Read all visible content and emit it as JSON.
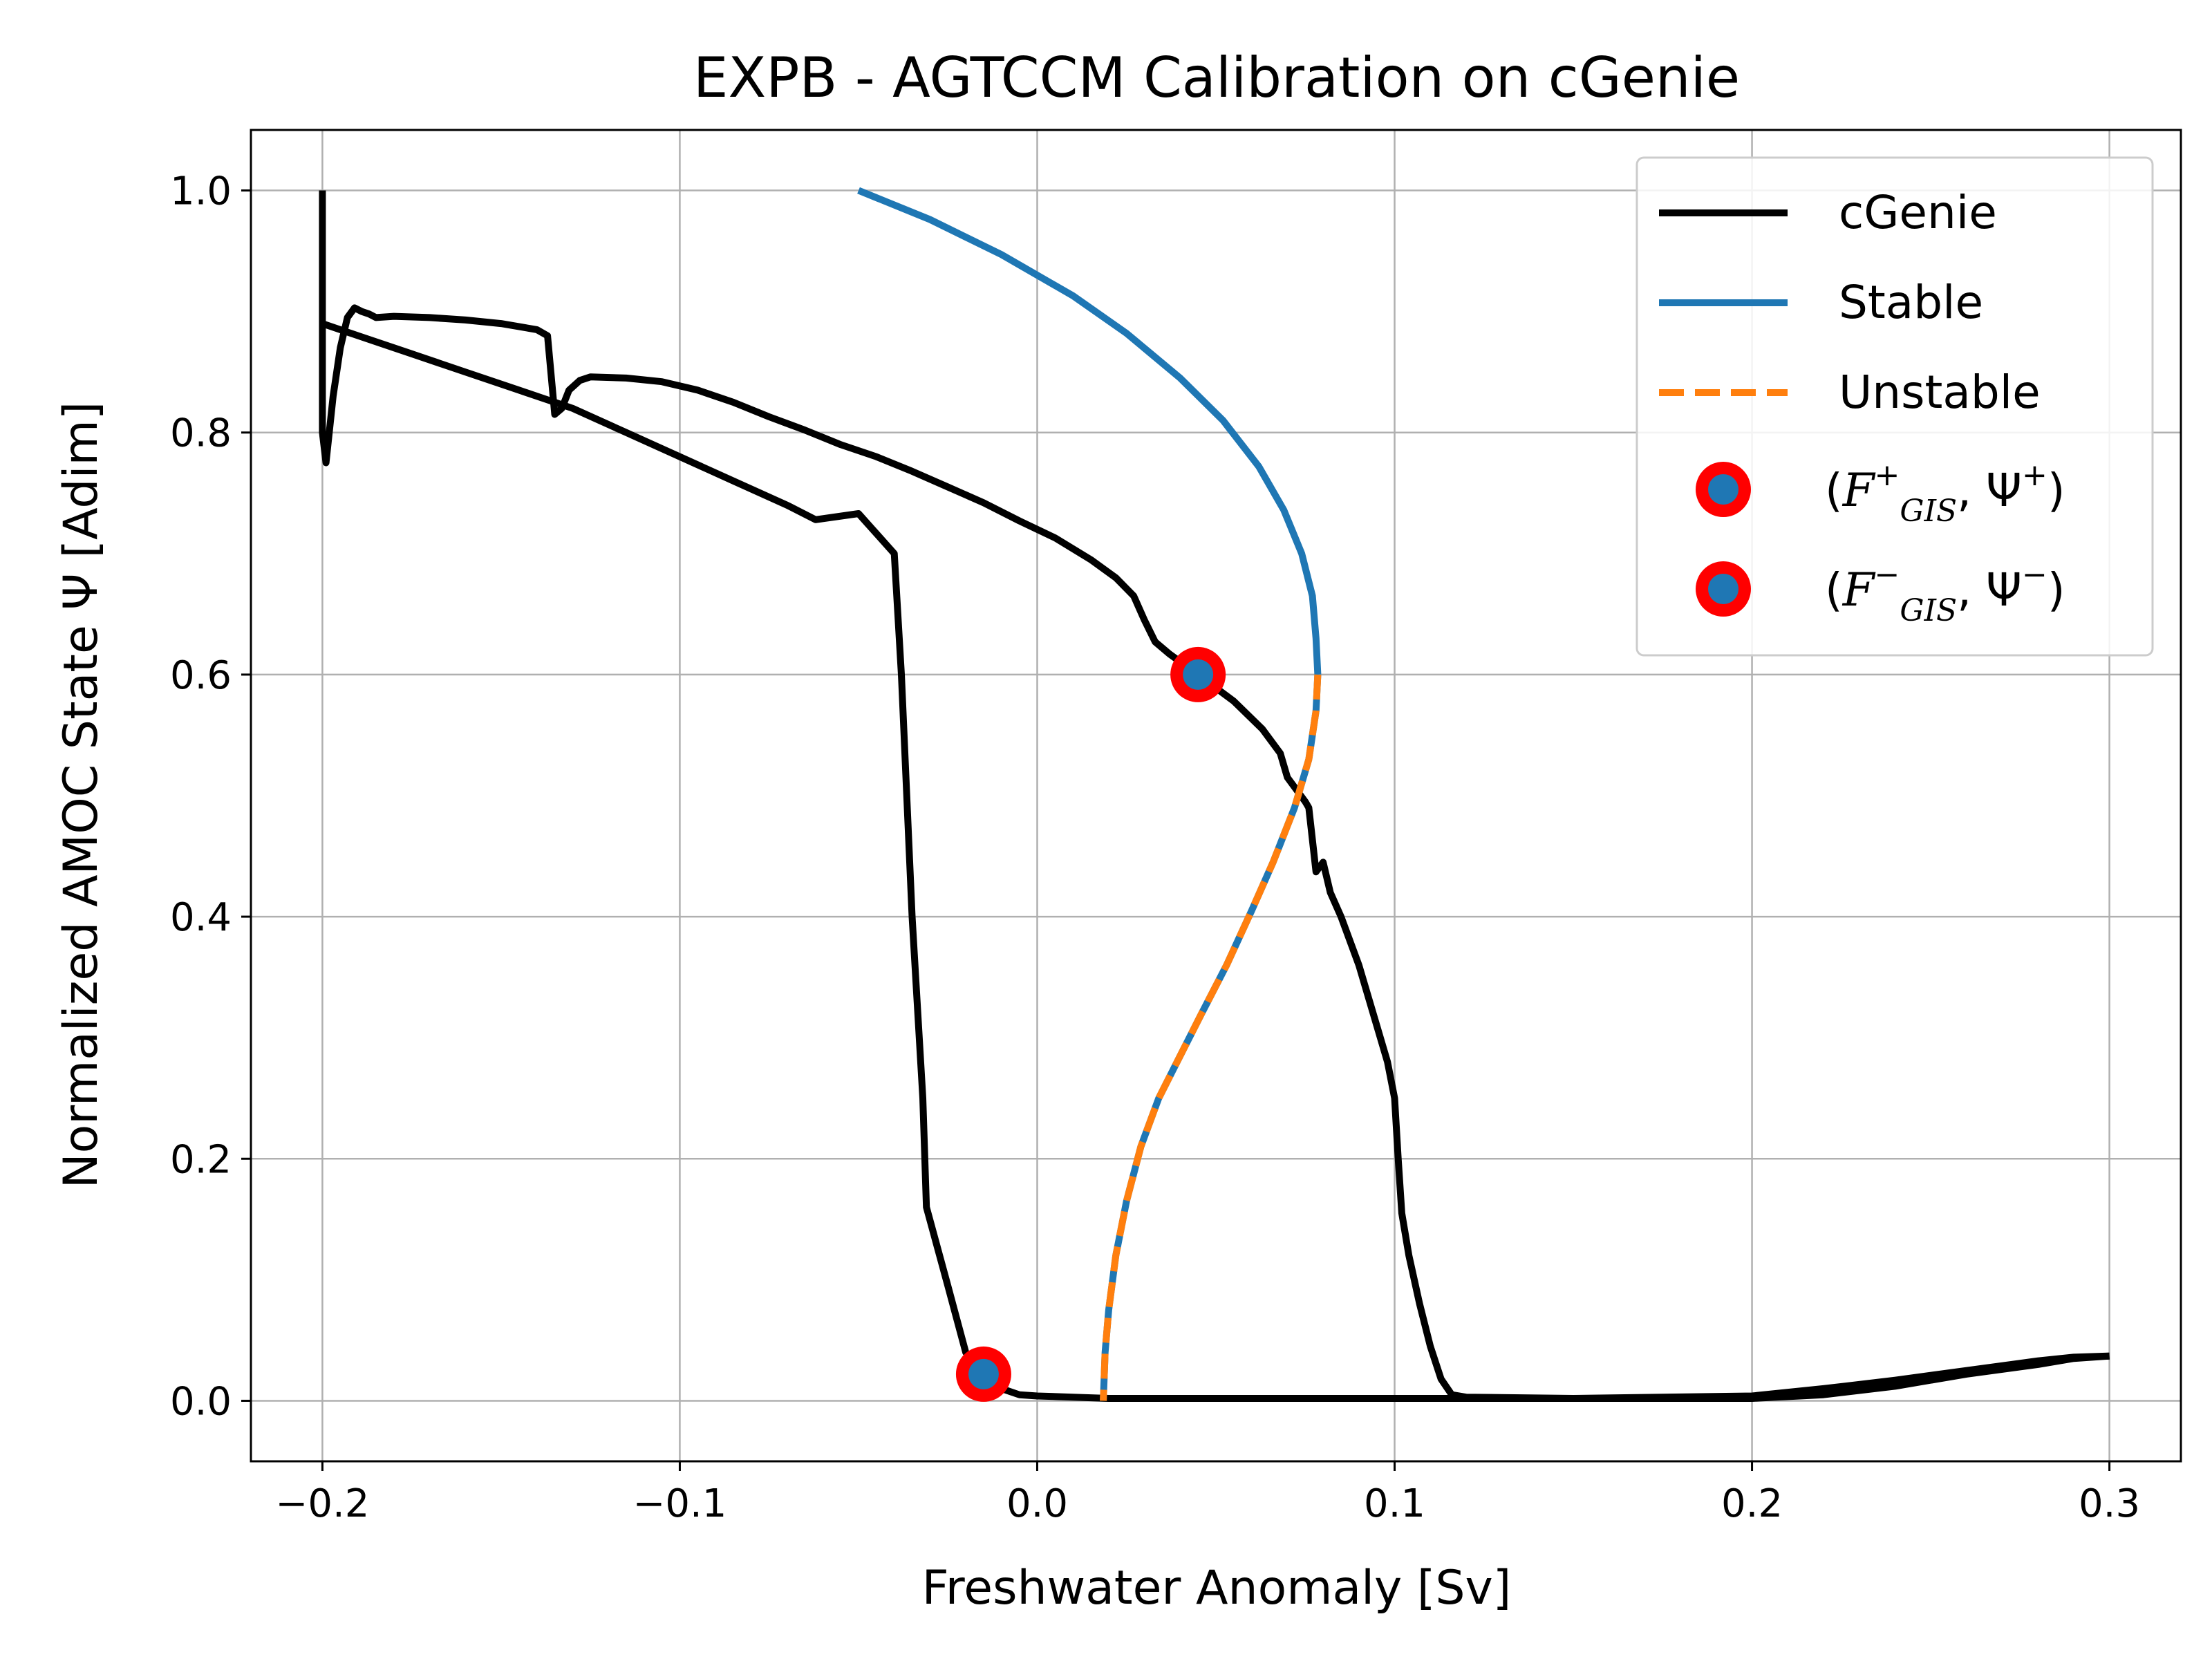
{
  "chart_data": {
    "type": "line",
    "title": "EXPB - AGTCCM Calibration on cGenie",
    "xlabel": "Freshwater Anomaly [Sv]",
    "ylabel": "Normalized AMOC State Ψ [Adim]",
    "xlim": [
      -0.22,
      0.32
    ],
    "ylim": [
      -0.05,
      1.05
    ],
    "grid": true,
    "legend_position": "top-right",
    "x_ticks": [
      {
        "value": -0.2,
        "label": "−0.2"
      },
      {
        "value": -0.1,
        "label": "−0.1"
      },
      {
        "value": 0.0,
        "label": "0.0"
      },
      {
        "value": 0.1,
        "label": "0.1"
      },
      {
        "value": 0.2,
        "label": "0.2"
      },
      {
        "value": 0.3,
        "label": "0.3"
      }
    ],
    "y_ticks": [
      {
        "value": 0.0,
        "label": "0.0"
      },
      {
        "value": 0.2,
        "label": "0.2"
      },
      {
        "value": 0.4,
        "label": "0.4"
      },
      {
        "value": 0.6,
        "label": "0.6"
      },
      {
        "value": 0.8,
        "label": "0.8"
      },
      {
        "value": 1.0,
        "label": "1.0"
      }
    ],
    "series": [
      {
        "name": "cGenie",
        "style": "solid",
        "color": "#000000",
        "points": [
          [
            -0.2,
            1.0
          ],
          [
            -0.2,
            0.8
          ],
          [
            -0.199,
            0.775
          ],
          [
            -0.197,
            0.83
          ],
          [
            -0.195,
            0.87
          ],
          [
            -0.193,
            0.895
          ],
          [
            -0.191,
            0.903
          ],
          [
            -0.189,
            0.9
          ],
          [
            -0.187,
            0.898
          ],
          [
            -0.185,
            0.895
          ],
          [
            -0.18,
            0.896
          ],
          [
            -0.17,
            0.895
          ],
          [
            -0.16,
            0.893
          ],
          [
            -0.15,
            0.89
          ],
          [
            -0.14,
            0.885
          ],
          [
            -0.137,
            0.88
          ],
          [
            -0.135,
            0.815
          ],
          [
            -0.133,
            0.82
          ],
          [
            -0.131,
            0.835
          ],
          [
            -0.128,
            0.843
          ],
          [
            -0.125,
            0.846
          ],
          [
            -0.115,
            0.845
          ],
          [
            -0.105,
            0.842
          ],
          [
            -0.095,
            0.835
          ],
          [
            -0.085,
            0.825
          ],
          [
            -0.075,
            0.813
          ],
          [
            -0.065,
            0.802
          ],
          [
            -0.055,
            0.79
          ],
          [
            -0.045,
            0.78
          ],
          [
            -0.035,
            0.768
          ],
          [
            -0.025,
            0.755
          ],
          [
            -0.015,
            0.742
          ],
          [
            -0.005,
            0.727
          ],
          [
            0.005,
            0.713
          ],
          [
            0.015,
            0.695
          ],
          [
            0.022,
            0.68
          ],
          [
            0.027,
            0.665
          ],
          [
            0.03,
            0.645
          ],
          [
            0.033,
            0.627
          ],
          [
            0.037,
            0.617
          ],
          [
            0.045,
            0.6
          ],
          [
            0.055,
            0.578
          ],
          [
            0.063,
            0.555
          ],
          [
            0.068,
            0.535
          ],
          [
            0.07,
            0.515
          ],
          [
            0.075,
            0.495
          ],
          [
            0.076,
            0.49
          ],
          [
            0.078,
            0.437
          ],
          [
            0.08,
            0.445
          ],
          [
            0.082,
            0.42
          ],
          [
            0.085,
            0.4
          ],
          [
            0.09,
            0.36
          ],
          [
            0.095,
            0.31
          ],
          [
            0.098,
            0.28
          ],
          [
            0.1,
            0.25
          ],
          [
            0.101,
            0.2
          ],
          [
            0.102,
            0.155
          ],
          [
            0.104,
            0.12
          ],
          [
            0.107,
            0.08
          ],
          [
            0.11,
            0.045
          ],
          [
            0.113,
            0.018
          ],
          [
            0.116,
            0.005
          ],
          [
            0.12,
            0.003
          ],
          [
            0.15,
            0.002
          ],
          [
            0.2,
            0.002
          ],
          [
            0.22,
            0.005
          ],
          [
            0.24,
            0.012
          ],
          [
            0.26,
            0.022
          ],
          [
            0.28,
            0.03
          ],
          [
            0.29,
            0.035
          ],
          [
            0.3,
            0.037
          ]
        ],
        "branch2": [
          [
            -0.2,
            0.89
          ],
          [
            -0.19,
            0.88
          ],
          [
            -0.175,
            0.865
          ],
          [
            -0.16,
            0.85
          ],
          [
            -0.145,
            0.835
          ],
          [
            -0.13,
            0.82
          ],
          [
            -0.115,
            0.8
          ],
          [
            -0.1,
            0.78
          ],
          [
            -0.085,
            0.76
          ],
          [
            -0.07,
            0.74
          ],
          [
            -0.062,
            0.728
          ],
          [
            -0.05,
            0.733
          ],
          [
            -0.04,
            0.7
          ],
          [
            -0.038,
            0.6
          ],
          [
            -0.035,
            0.4
          ],
          [
            -0.032,
            0.25
          ],
          [
            -0.031,
            0.16
          ],
          [
            -0.025,
            0.095
          ],
          [
            -0.02,
            0.04
          ],
          [
            -0.015,
            0.02
          ],
          [
            -0.01,
            0.01
          ],
          [
            -0.005,
            0.005
          ],
          [
            0.0,
            0.004
          ],
          [
            0.01,
            0.003
          ],
          [
            0.02,
            0.002
          ],
          [
            0.05,
            0.002
          ],
          [
            0.1,
            0.002
          ],
          [
            0.15,
            0.002
          ],
          [
            0.2,
            0.004
          ],
          [
            0.22,
            0.01
          ],
          [
            0.24,
            0.017
          ],
          [
            0.26,
            0.025
          ],
          [
            0.28,
            0.033
          ],
          [
            0.29,
            0.036
          ],
          [
            0.3,
            0.037
          ]
        ]
      },
      {
        "name": "Stable",
        "style": "solid",
        "color": "#1f77b4",
        "points": [
          [
            -0.05,
            1.0
          ],
          [
            -0.03,
            0.976
          ],
          [
            -0.01,
            0.947
          ],
          [
            0.01,
            0.913
          ],
          [
            0.025,
            0.882
          ],
          [
            0.04,
            0.845
          ],
          [
            0.052,
            0.81
          ],
          [
            0.062,
            0.772
          ],
          [
            0.069,
            0.736
          ],
          [
            0.074,
            0.7
          ],
          [
            0.077,
            0.665
          ],
          [
            0.078,
            0.63
          ],
          [
            0.0785,
            0.6
          ]
        ]
      },
      {
        "name": "Unstable",
        "style": "dashed",
        "color": "#ff7f0e",
        "overlay_color": "#1f77b4",
        "points": [
          [
            0.0785,
            0.6
          ],
          [
            0.078,
            0.57
          ],
          [
            0.076,
            0.53
          ],
          [
            0.072,
            0.49
          ],
          [
            0.066,
            0.445
          ],
          [
            0.06,
            0.405
          ],
          [
            0.053,
            0.36
          ],
          [
            0.046,
            0.32
          ],
          [
            0.04,
            0.285
          ],
          [
            0.034,
            0.25
          ],
          [
            0.029,
            0.21
          ],
          [
            0.025,
            0.165
          ],
          [
            0.022,
            0.12
          ],
          [
            0.02,
            0.075
          ],
          [
            0.019,
            0.04
          ],
          [
            0.0185,
            0.0
          ]
        ]
      }
    ],
    "markers": [
      {
        "name": "(F⁺ GIS, Ψ⁺)",
        "x": 0.045,
        "y": 0.6,
        "fill": "#1f77b4",
        "edge": "#ff0000"
      },
      {
        "name": "(F⁻ GIS, Ψ⁻)",
        "x": -0.015,
        "y": 0.022,
        "fill": "#1f77b4",
        "edge": "#ff0000"
      }
    ],
    "legend": [
      {
        "label": "cGenie",
        "kind": "line",
        "color": "#000000",
        "style": "solid"
      },
      {
        "label": "Stable",
        "kind": "line",
        "color": "#1f77b4",
        "style": "solid"
      },
      {
        "label": "Unstable",
        "kind": "line",
        "color": "#ff7f0e",
        "style": "dashed"
      },
      {
        "kind": "marker",
        "label_parts": [
          "(",
          "F",
          "+",
          "GIS",
          ", Ψ",
          "+",
          ")"
        ]
      },
      {
        "kind": "marker",
        "label_parts": [
          "(",
          "F",
          "−",
          "GIS",
          ", Ψ",
          "−",
          ")"
        ]
      }
    ]
  }
}
